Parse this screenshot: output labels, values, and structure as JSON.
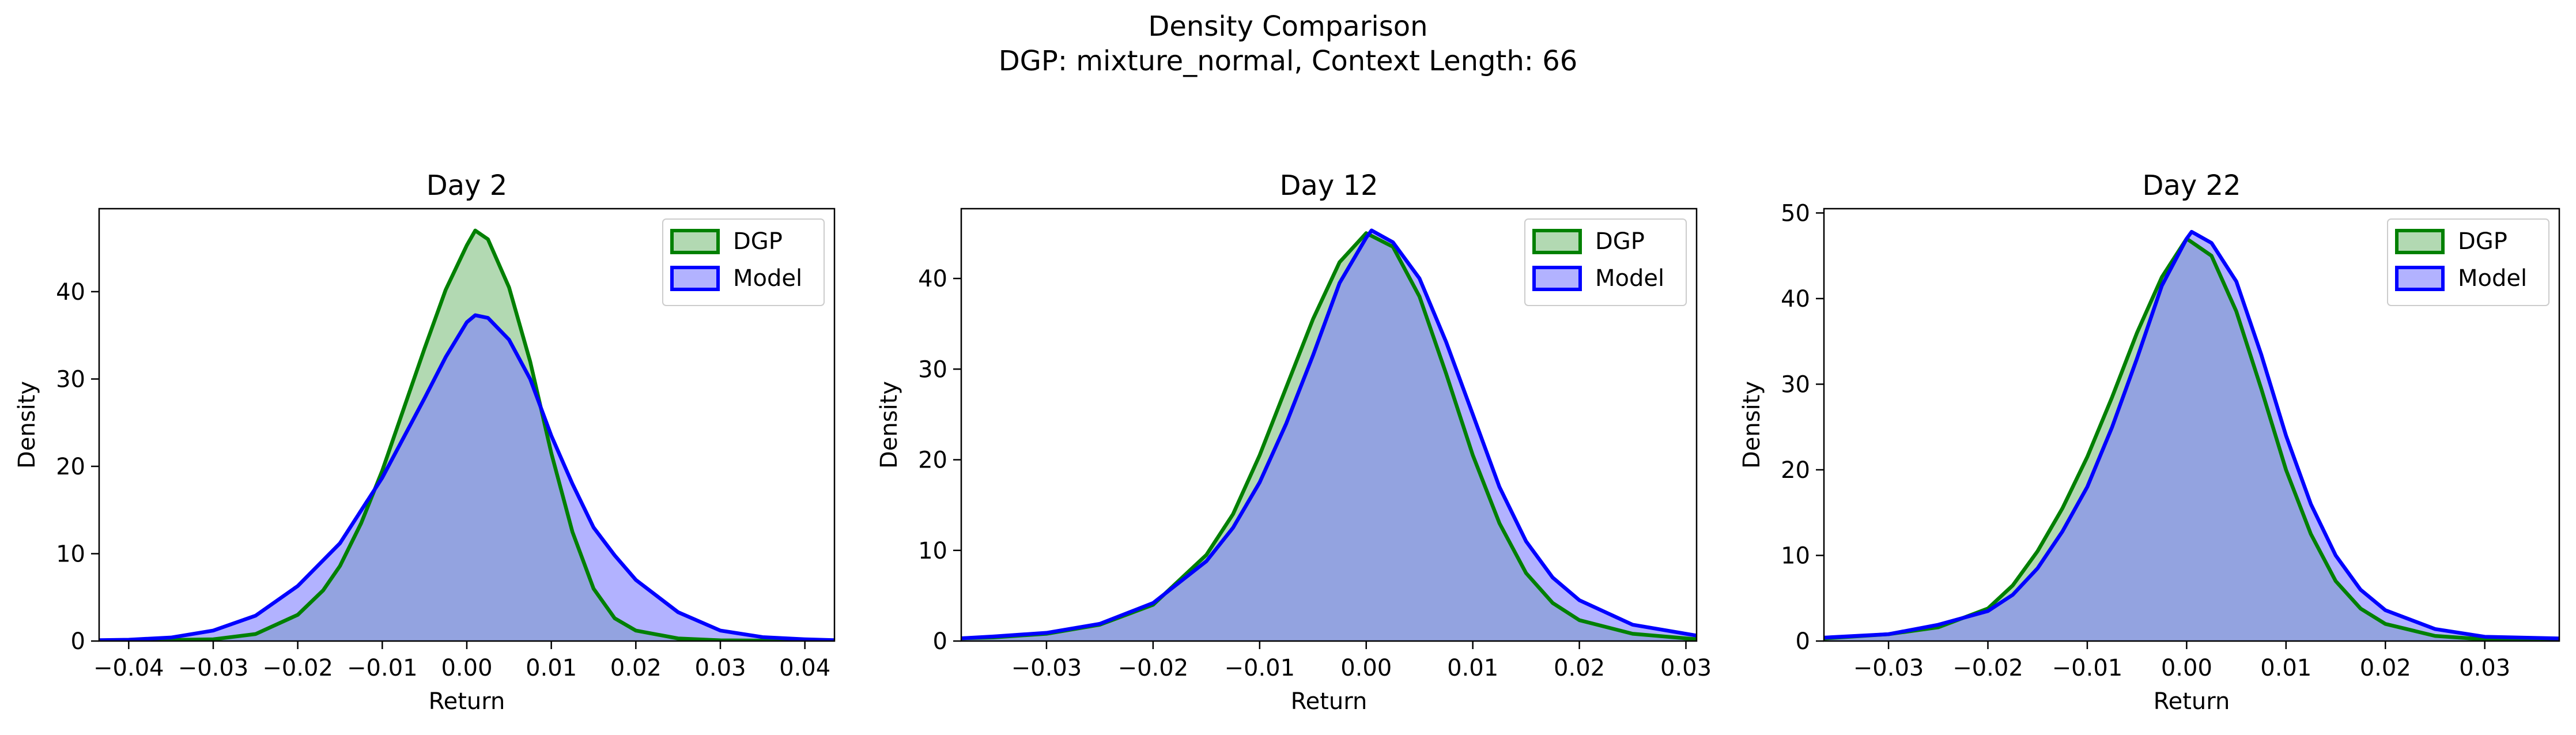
{
  "figure": {
    "title_line1": "Density Comparison",
    "title_line2": "DGP: mixture_normal, Context Length: 66"
  },
  "colors": {
    "dgp_line": "#008000",
    "dgp_fill": "#7fbf7f",
    "model_line": "#0000ff",
    "model_fill": "#7f7fff"
  },
  "chart_data": [
    {
      "type": "area",
      "title": "Day 2",
      "xlabel": "Return",
      "ylabel": "Density",
      "xlim": [
        -0.0435,
        0.0435
      ],
      "ylim": [
        0,
        49.5
      ],
      "xticks": [
        -0.04,
        -0.03,
        -0.02,
        -0.01,
        0.0,
        0.01,
        0.02,
        0.03,
        0.04
      ],
      "xtick_labels": [
        "−0.04",
        "−0.03",
        "−0.02",
        "−0.01",
        "0.00",
        "0.01",
        "0.02",
        "0.03",
        "0.04"
      ],
      "yticks": [
        0,
        10,
        20,
        30,
        40
      ],
      "ytick_labels": [
        "0",
        "10",
        "20",
        "30",
        "40"
      ],
      "legend": {
        "placement": "top-right",
        "entries": [
          "DGP",
          "Model"
        ]
      },
      "series": [
        {
          "name": "DGP",
          "points": [
            [
              -0.0435,
              0.0
            ],
            [
              -0.03,
              0.2
            ],
            [
              -0.025,
              0.8
            ],
            [
              -0.02,
              3.0
            ],
            [
              -0.017,
              5.8
            ],
            [
              -0.015,
              8.6
            ],
            [
              -0.0125,
              13.5
            ],
            [
              -0.01,
              19.5
            ],
            [
              -0.0075,
              26.5
            ],
            [
              -0.005,
              33.5
            ],
            [
              -0.0025,
              40.2
            ],
            [
              0.0,
              45.3
            ],
            [
              0.001,
              47.0
            ],
            [
              0.0025,
              46.0
            ],
            [
              0.005,
              40.5
            ],
            [
              0.0075,
              32.0
            ],
            [
              0.01,
              21.5
            ],
            [
              0.0125,
              12.5
            ],
            [
              0.015,
              6.0
            ],
            [
              0.0175,
              2.6
            ],
            [
              0.02,
              1.2
            ],
            [
              0.025,
              0.3
            ],
            [
              0.03,
              0.08
            ],
            [
              0.0435,
              0.0
            ]
          ]
        },
        {
          "name": "Model",
          "points": [
            [
              -0.0435,
              0.1
            ],
            [
              -0.04,
              0.15
            ],
            [
              -0.035,
              0.4
            ],
            [
              -0.03,
              1.2
            ],
            [
              -0.025,
              2.9
            ],
            [
              -0.02,
              6.3
            ],
            [
              -0.015,
              11.2
            ],
            [
              -0.01,
              18.7
            ],
            [
              -0.005,
              27.8
            ],
            [
              -0.0025,
              32.5
            ],
            [
              0.0,
              36.5
            ],
            [
              0.001,
              37.3
            ],
            [
              0.0025,
              37.0
            ],
            [
              0.005,
              34.5
            ],
            [
              0.0075,
              30.0
            ],
            [
              0.01,
              23.5
            ],
            [
              0.0125,
              18.0
            ],
            [
              0.015,
              13.0
            ],
            [
              0.0175,
              9.8
            ],
            [
              0.02,
              7.0
            ],
            [
              0.025,
              3.3
            ],
            [
              0.03,
              1.2
            ],
            [
              0.035,
              0.45
            ],
            [
              0.04,
              0.2
            ],
            [
              0.0435,
              0.1
            ]
          ]
        }
      ]
    },
    {
      "type": "area",
      "title": "Day 12",
      "xlabel": "Return",
      "ylabel": "Density",
      "xlim": [
        -0.038,
        0.031
      ],
      "ylim": [
        0,
        47.7
      ],
      "xticks": [
        -0.03,
        -0.02,
        -0.01,
        0.0,
        0.01,
        0.02,
        0.03
      ],
      "xtick_labels": [
        "−0.03",
        "−0.02",
        "−0.01",
        "0.00",
        "0.01",
        "0.02",
        "0.03"
      ],
      "yticks": [
        0,
        10,
        20,
        30,
        40
      ],
      "ytick_labels": [
        "0",
        "10",
        "20",
        "30",
        "40"
      ],
      "legend": {
        "placement": "top-right",
        "entries": [
          "DGP",
          "Model"
        ]
      },
      "series": [
        {
          "name": "DGP",
          "points": [
            [
              -0.038,
              0.3
            ],
            [
              -0.035,
              0.4
            ],
            [
              -0.03,
              0.8
            ],
            [
              -0.025,
              1.8
            ],
            [
              -0.02,
              4.0
            ],
            [
              -0.015,
              9.5
            ],
            [
              -0.0125,
              14.0
            ],
            [
              -0.01,
              20.5
            ],
            [
              -0.0075,
              28.0
            ],
            [
              -0.005,
              35.5
            ],
            [
              -0.0025,
              41.8
            ],
            [
              0.0,
              45.0
            ],
            [
              0.0025,
              43.5
            ],
            [
              0.005,
              38.0
            ],
            [
              0.0075,
              29.5
            ],
            [
              0.01,
              20.5
            ],
            [
              0.0125,
              13.0
            ],
            [
              0.015,
              7.5
            ],
            [
              0.0175,
              4.2
            ],
            [
              0.02,
              2.3
            ],
            [
              0.025,
              0.8
            ],
            [
              0.031,
              0.2
            ]
          ]
        },
        {
          "name": "Model",
          "points": [
            [
              -0.038,
              0.3
            ],
            [
              -0.035,
              0.5
            ],
            [
              -0.03,
              0.9
            ],
            [
              -0.025,
              1.9
            ],
            [
              -0.02,
              4.2
            ],
            [
              -0.015,
              8.8
            ],
            [
              -0.0125,
              12.5
            ],
            [
              -0.01,
              17.5
            ],
            [
              -0.0075,
              24.0
            ],
            [
              -0.005,
              31.5
            ],
            [
              -0.0025,
              39.5
            ],
            [
              0.0,
              44.5
            ],
            [
              0.0005,
              45.3
            ],
            [
              0.0025,
              44.0
            ],
            [
              0.005,
              40.0
            ],
            [
              0.0075,
              33.0
            ],
            [
              0.01,
              25.0
            ],
            [
              0.0125,
              17.0
            ],
            [
              0.015,
              11.0
            ],
            [
              0.0175,
              7.0
            ],
            [
              0.02,
              4.5
            ],
            [
              0.025,
              1.8
            ],
            [
              0.031,
              0.6
            ]
          ]
        }
      ]
    },
    {
      "type": "area",
      "title": "Day 22",
      "xlabel": "Return",
      "ylabel": "Density",
      "xlim": [
        -0.0365,
        0.0375
      ],
      "ylim": [
        0,
        50.5
      ],
      "xticks": [
        -0.03,
        -0.02,
        -0.01,
        0.0,
        0.01,
        0.02,
        0.03
      ],
      "xtick_labels": [
        "−0.03",
        "−0.02",
        "−0.01",
        "0.00",
        "0.01",
        "0.02",
        "0.03"
      ],
      "yticks": [
        0,
        10,
        20,
        30,
        40,
        50
      ],
      "ytick_labels": [
        "0",
        "10",
        "20",
        "30",
        "40",
        "50"
      ],
      "legend": {
        "placement": "top-right",
        "entries": [
          "DGP",
          "Model"
        ]
      },
      "series": [
        {
          "name": "DGP",
          "points": [
            [
              -0.0365,
              0.3
            ],
            [
              -0.03,
              0.8
            ],
            [
              -0.025,
              1.6
            ],
            [
              -0.02,
              3.8
            ],
            [
              -0.0175,
              6.5
            ],
            [
              -0.015,
              10.5
            ],
            [
              -0.0125,
              15.5
            ],
            [
              -0.01,
              21.5
            ],
            [
              -0.0075,
              28.5
            ],
            [
              -0.005,
              36.0
            ],
            [
              -0.0025,
              42.5
            ],
            [
              0.0,
              47.0
            ],
            [
              0.0025,
              45.0
            ],
            [
              0.005,
              38.5
            ],
            [
              0.0075,
              29.5
            ],
            [
              0.01,
              20.0
            ],
            [
              0.0125,
              12.5
            ],
            [
              0.015,
              7.0
            ],
            [
              0.0175,
              3.8
            ],
            [
              0.02,
              2.0
            ],
            [
              0.025,
              0.6
            ],
            [
              0.03,
              0.2
            ],
            [
              0.0375,
              0.1
            ]
          ]
        },
        {
          "name": "Model",
          "points": [
            [
              -0.0365,
              0.4
            ],
            [
              -0.03,
              0.8
            ],
            [
              -0.025,
              1.9
            ],
            [
              -0.02,
              3.5
            ],
            [
              -0.0175,
              5.4
            ],
            [
              -0.015,
              8.5
            ],
            [
              -0.0125,
              12.8
            ],
            [
              -0.01,
              18.0
            ],
            [
              -0.0075,
              25.0
            ],
            [
              -0.005,
              33.0
            ],
            [
              -0.0025,
              41.5
            ],
            [
              0.0,
              47.0
            ],
            [
              0.0005,
              47.8
            ],
            [
              0.0025,
              46.5
            ],
            [
              0.005,
              42.0
            ],
            [
              0.0075,
              33.5
            ],
            [
              0.01,
              24.0
            ],
            [
              0.0125,
              16.0
            ],
            [
              0.015,
              10.0
            ],
            [
              0.0175,
              6.0
            ],
            [
              0.02,
              3.6
            ],
            [
              0.025,
              1.4
            ],
            [
              0.03,
              0.5
            ],
            [
              0.0375,
              0.3
            ]
          ]
        }
      ]
    }
  ]
}
